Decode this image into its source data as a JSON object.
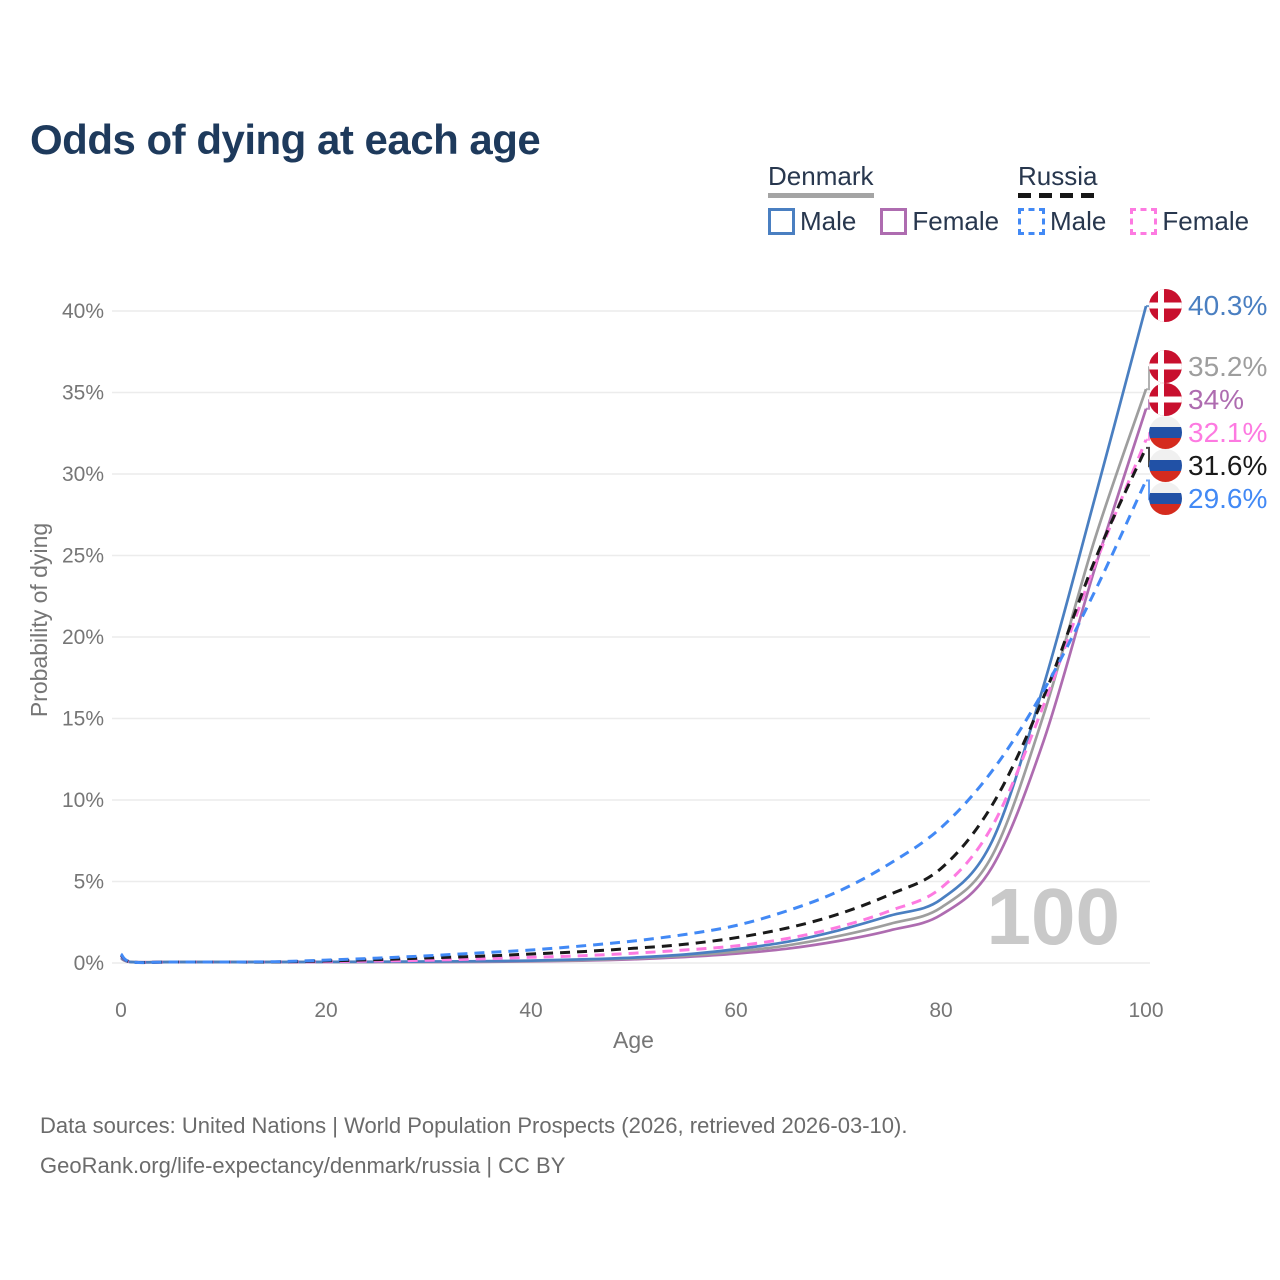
{
  "title": "Odds of dying at each age",
  "legend": {
    "groups": [
      {
        "name": "Denmark",
        "line_style": "solid",
        "line_color": "#a4a4a4",
        "items": [
          {
            "label": "Male",
            "color": "#4a7fc1"
          },
          {
            "label": "Female",
            "color": "#ae6cb0"
          }
        ]
      },
      {
        "name": "Russia",
        "line_style": "dashed",
        "line_color": "#161616",
        "items": [
          {
            "label": "Male",
            "color": "#4289f5"
          },
          {
            "label": "Female",
            "color": "#fd7ae1"
          }
        ]
      }
    ]
  },
  "chart_data": {
    "type": "line",
    "title": "Odds of dying at each age",
    "xlabel": "Age",
    "ylabel": "Probability of dying",
    "xlim": [
      0,
      100
    ],
    "ylim": [
      0,
      40
    ],
    "x_ticks": [
      0,
      20,
      40,
      60,
      80,
      100
    ],
    "y_ticks": [
      0,
      5,
      10,
      15,
      20,
      25,
      30,
      35,
      40
    ],
    "y_tick_suffix": "%",
    "grid": "horizontal",
    "legend_position": "top-right",
    "age_indicator": "100",
    "x": [
      0,
      1,
      5,
      10,
      15,
      20,
      25,
      30,
      35,
      40,
      45,
      50,
      55,
      60,
      65,
      70,
      75,
      80,
      85,
      90,
      95,
      100
    ],
    "series": [
      {
        "id": "denmark-female",
        "name": "Denmark Female",
        "country": "Denmark",
        "sex": "Female",
        "flag": "dk",
        "color": "#ae6cb0",
        "dash": false,
        "end_label": "34%",
        "values": [
          0.28,
          0.02,
          0.01,
          0.01,
          0.02,
          0.03,
          0.04,
          0.05,
          0.07,
          0.1,
          0.15,
          0.23,
          0.37,
          0.57,
          0.88,
          1.35,
          2.0,
          2.95,
          5.9,
          13.6,
          24.2,
          34.0
        ]
      },
      {
        "id": "denmark-both",
        "name": "Denmark (both sexes)",
        "country": "Denmark",
        "sex": "Both",
        "flag": "dk",
        "color": "#9e9e9e",
        "dash": false,
        "end_label": "35.2%",
        "values": [
          0.3,
          0.02,
          0.01,
          0.01,
          0.03,
          0.05,
          0.06,
          0.07,
          0.09,
          0.12,
          0.18,
          0.28,
          0.44,
          0.7,
          1.08,
          1.65,
          2.4,
          3.4,
          6.6,
          15.2,
          26.0,
          35.2
        ]
      },
      {
        "id": "denmark-male",
        "name": "Denmark Male",
        "country": "Denmark",
        "sex": "Male",
        "flag": "dk",
        "color": "#4a7fc1",
        "dash": false,
        "end_label": "40.3%",
        "values": [
          0.35,
          0.03,
          0.01,
          0.01,
          0.04,
          0.07,
          0.08,
          0.09,
          0.11,
          0.15,
          0.22,
          0.33,
          0.52,
          0.85,
          1.3,
          2.0,
          2.9,
          3.9,
          7.5,
          17.0,
          28.5,
          40.3
        ]
      },
      {
        "id": "russia-female",
        "name": "Russia Female",
        "country": "Russia",
        "sex": "Female",
        "flag": "ru",
        "color": "#fd7ae1",
        "dash": true,
        "end_label": "32.1%",
        "values": [
          0.45,
          0.03,
          0.02,
          0.02,
          0.04,
          0.08,
          0.12,
          0.17,
          0.25,
          0.35,
          0.45,
          0.6,
          0.8,
          1.05,
          1.5,
          2.2,
          3.2,
          4.6,
          8.4,
          15.8,
          24.4,
          32.1
        ]
      },
      {
        "id": "russia-both",
        "name": "Russia (both sexes)",
        "country": "Russia",
        "sex": "Both",
        "flag": "ru",
        "color": "#1a1a1a",
        "dash": true,
        "end_label": "31.6%",
        "values": [
          0.5,
          0.04,
          0.02,
          0.03,
          0.06,
          0.13,
          0.21,
          0.31,
          0.42,
          0.55,
          0.7,
          0.9,
          1.15,
          1.55,
          2.15,
          3.0,
          4.2,
          5.8,
          9.7,
          16.3,
          24.7,
          31.6
        ]
      },
      {
        "id": "russia-male",
        "name": "Russia Male",
        "country": "Russia",
        "sex": "Male",
        "flag": "ru",
        "color": "#4289f5",
        "dash": true,
        "end_label": "29.6%",
        "values": [
          0.55,
          0.04,
          0.02,
          0.03,
          0.08,
          0.18,
          0.3,
          0.45,
          0.62,
          0.8,
          1.05,
          1.35,
          1.75,
          2.3,
          3.2,
          4.4,
          6.1,
          8.3,
          11.8,
          16.7,
          22.8,
          29.6
        ]
      }
    ]
  },
  "footer": {
    "line1": "Data sources: United Nations | World Population Prospects (2026, retrieved 2026-03-10).",
    "line2": "GeoRank.org/life-expectancy/denmark/russia | CC BY"
  }
}
